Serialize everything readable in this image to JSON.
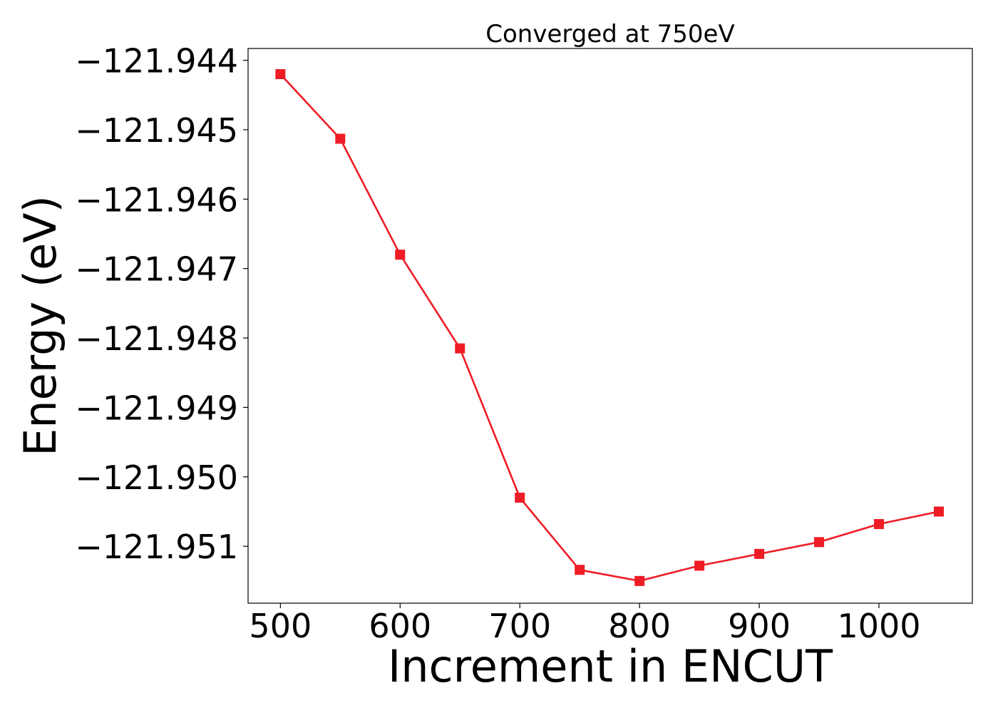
{
  "chart_data": {
    "type": "line",
    "title": "Converged at 750eV",
    "xlabel": "Increment in ENCUT",
    "ylabel": "Energy (eV)",
    "x": [
      500,
      550,
      600,
      650,
      700,
      750,
      800,
      850,
      900,
      950,
      1000,
      1050
    ],
    "series": [
      {
        "values": [
          -121.9442,
          -121.94513,
          -121.9468,
          -121.94815,
          -121.9503,
          -121.95134,
          -121.9515,
          -121.95128,
          -121.95111,
          -121.95094,
          -121.95068,
          -121.9505
        ],
        "color": "#ee1c25",
        "marker": "square"
      }
    ],
    "xticks": [
      500,
      600,
      700,
      800,
      900,
      1000
    ],
    "xtick_labels": [
      "500",
      "600",
      "700",
      "800",
      "900",
      "1000"
    ],
    "yticks": [
      -121.944,
      -121.945,
      -121.946,
      -121.947,
      -121.948,
      -121.949,
      -121.95,
      -121.951
    ],
    "ytick_labels": [
      "−121.944",
      "−121.945",
      "−121.946",
      "−121.947",
      "−121.948",
      "−121.949",
      "−121.950",
      "−121.951"
    ],
    "xlim": [
      473,
      1078
    ],
    "ylim": [
      -121.95182,
      -121.94383
    ],
    "grid": false,
    "legend": "none"
  }
}
